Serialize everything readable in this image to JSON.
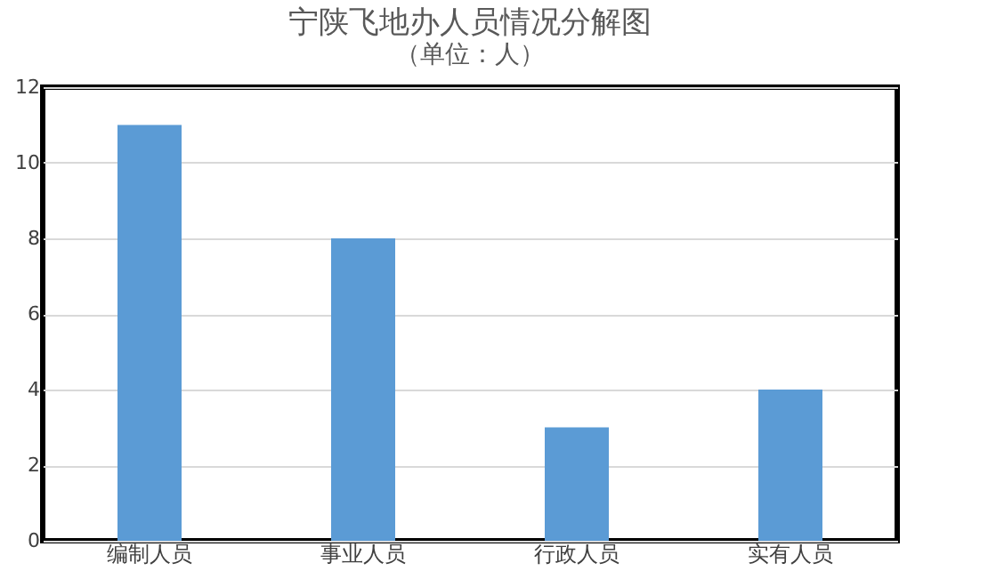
{
  "chart_data": {
    "type": "bar",
    "title": "宁陕飞地办人员情况分解图",
    "subtitle": "（单位：人）",
    "categories": [
      "编制人员",
      "事业人员",
      "行政人员",
      "实有人员"
    ],
    "values": [
      11,
      8,
      3,
      4
    ],
    "color": "#5b9bd5",
    "ylim": [
      0,
      12
    ],
    "yticks": [
      0,
      2,
      4,
      6,
      8,
      10,
      12
    ],
    "grid": "y"
  }
}
